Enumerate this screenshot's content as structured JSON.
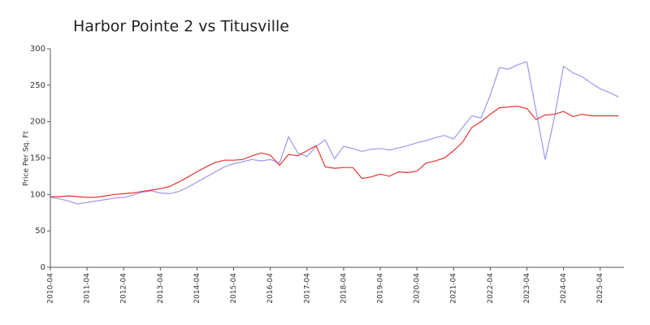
{
  "chart_data": {
    "type": "line",
    "title": "Harbor Pointe 2 vs Titusville",
    "y_label": "Price Per Sq. Ft",
    "x": [
      "2010-04",
      "2010-07",
      "2010-10",
      "2011-01",
      "2011-04",
      "2011-07",
      "2011-10",
      "2012-01",
      "2012-04",
      "2012-07",
      "2012-10",
      "2013-01",
      "2013-04",
      "2013-07",
      "2013-10",
      "2014-01",
      "2014-04",
      "2014-07",
      "2014-10",
      "2015-01",
      "2015-04",
      "2015-07",
      "2015-10",
      "2016-01",
      "2016-04",
      "2016-07",
      "2016-10",
      "2017-01",
      "2017-04",
      "2017-07",
      "2017-10",
      "2018-01",
      "2018-04",
      "2018-07",
      "2018-10",
      "2019-01",
      "2019-04",
      "2019-07",
      "2019-10",
      "2020-01",
      "2020-04",
      "2020-07",
      "2020-10",
      "2021-01",
      "2021-04",
      "2021-07",
      "2021-10",
      "2022-01",
      "2022-04",
      "2022-07",
      "2022-10",
      "2023-01",
      "2023-04",
      "2023-07",
      "2023-10",
      "2024-01",
      "2024-04",
      "2024-07",
      "2024-10",
      "2025-01",
      "2025-04",
      "2025-07",
      "2025-10"
    ],
    "series": [
      {
        "color": "#e8322f",
        "values": [
          97,
          97,
          98,
          97,
          96,
          96,
          98,
          100,
          101,
          102,
          104,
          106,
          108,
          111,
          117,
          124,
          131,
          138,
          144,
          147,
          147,
          148,
          153,
          157,
          154,
          140,
          155,
          153,
          160,
          167,
          138,
          136,
          137,
          137,
          122,
          124,
          128,
          125,
          131,
          130,
          132,
          143,
          146,
          150,
          160,
          172,
          192,
          200,
          210,
          219,
          220,
          221,
          218,
          203,
          209,
          210,
          214,
          207,
          210,
          208,
          208,
          208,
          208
        ]
      },
      {
        "color": "#9999ee",
        "values": [
          96,
          94,
          91,
          87,
          89,
          91,
          93,
          95,
          96,
          99,
          103,
          105,
          102,
          101,
          104,
          110,
          117,
          124,
          131,
          138,
          142,
          145,
          148,
          146,
          148,
          143,
          179,
          157,
          152,
          166,
          175,
          149,
          166,
          163,
          159,
          162,
          163,
          161,
          164,
          167,
          171,
          174,
          178,
          181,
          176,
          192,
          208,
          205,
          236,
          274,
          272,
          278,
          282,
          215,
          148,
          205,
          276,
          267,
          262,
          253,
          245,
          240,
          234
        ]
      }
    ],
    "xlim": [
      "2010-04",
      "2025-11"
    ],
    "xticks": [
      "2010-04",
      "2011-04",
      "2012-04",
      "2013-04",
      "2014-04",
      "2015-04",
      "2016-04",
      "2017-04",
      "2018-04",
      "2019-04",
      "2020-04",
      "2021-04",
      "2022-04",
      "2023-04",
      "2024-04",
      "2025-04"
    ],
    "ylim": [
      0,
      300
    ],
    "yticks": [
      0,
      50,
      100,
      150,
      200,
      250,
      300
    ]
  }
}
